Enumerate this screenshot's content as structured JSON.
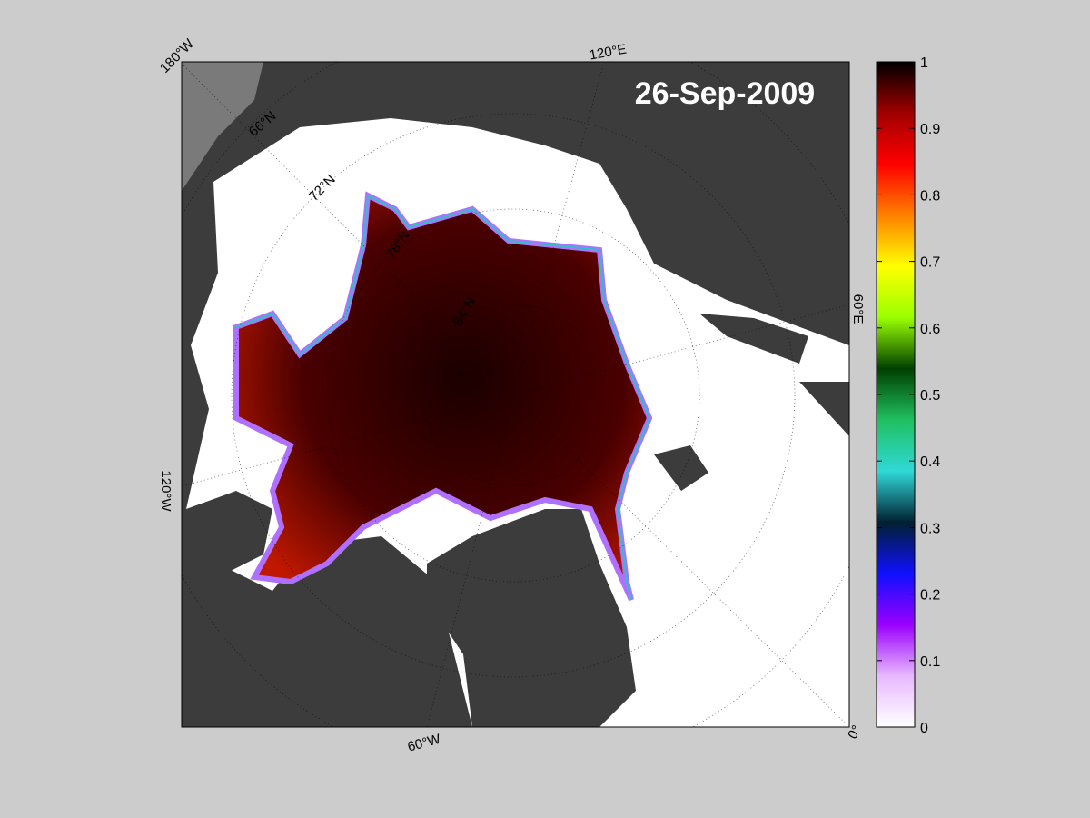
{
  "map": {
    "date": "26-Sep-2009",
    "longitude_labels": [
      "180°W",
      "120°E",
      "60°E",
      "0°",
      "60°W",
      "120°W"
    ],
    "latitude_labels": [
      "66°N",
      "72°N",
      "78°N",
      "84°N"
    ]
  },
  "colorbar": {
    "lim": [
      0,
      1
    ],
    "ticks": [
      0,
      0.1,
      0.2,
      0.3,
      0.4,
      0.5,
      0.6,
      0.7,
      0.8,
      0.9,
      1
    ],
    "colors": [
      "#ffffff",
      "#e8b8ff",
      "#9a00ff",
      "#1010ff",
      "#002030",
      "#30d8d8",
      "#20c060",
      "#004000",
      "#9aff00",
      "#ffff00",
      "#ff8000",
      "#ff0000",
      "#a00000",
      "#000000"
    ]
  }
}
